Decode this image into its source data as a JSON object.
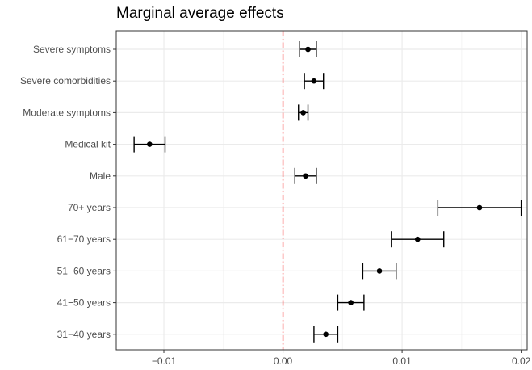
{
  "chart_data": {
    "type": "scatter",
    "subtype": "coefficient-plot-with-error-bars",
    "title": "Marginal average effects",
    "xlabel": "",
    "ylabel": "",
    "xlim": [
      -0.014,
      0.0205
    ],
    "x_ticks": [
      -0.01,
      0.0,
      0.01,
      0.02
    ],
    "x_tick_labels": [
      "−0.01",
      "0.00",
      "0.01",
      "0.02"
    ],
    "grid": true,
    "reference_line": {
      "x": 0.0,
      "style": "dash-dot",
      "color": "#ff0000"
    },
    "colors": {
      "points": "#000000",
      "grid_major": "#ebebeb",
      "grid_minor": "#f4f4f4",
      "panel_border": "#333333",
      "tick_text": "#4d4d4d"
    },
    "points": [
      {
        "label": "Severe symptoms",
        "estimate": 0.0021,
        "lower": 0.0014,
        "upper": 0.0028
      },
      {
        "label": "Severe comorbidities",
        "estimate": 0.0026,
        "lower": 0.0018,
        "upper": 0.0034
      },
      {
        "label": "Moderate symptoms",
        "estimate": 0.0017,
        "lower": 0.0013,
        "upper": 0.0021
      },
      {
        "label": "Medical kit",
        "estimate": -0.0112,
        "lower": -0.0125,
        "upper": -0.0099
      },
      {
        "label": "Male",
        "estimate": 0.0019,
        "lower": 0.001,
        "upper": 0.0028
      },
      {
        "label": "70+ years",
        "estimate": 0.0165,
        "lower": 0.013,
        "upper": 0.02
      },
      {
        "label": "61−70 years",
        "estimate": 0.0113,
        "lower": 0.0091,
        "upper": 0.0135
      },
      {
        "label": "51−60 years",
        "estimate": 0.0081,
        "lower": 0.0067,
        "upper": 0.0095
      },
      {
        "label": "41−50 years",
        "estimate": 0.0057,
        "lower": 0.0046,
        "upper": 0.0068
      },
      {
        "label": "31−40 years",
        "estimate": 0.0036,
        "lower": 0.0026,
        "upper": 0.0046
      }
    ]
  }
}
